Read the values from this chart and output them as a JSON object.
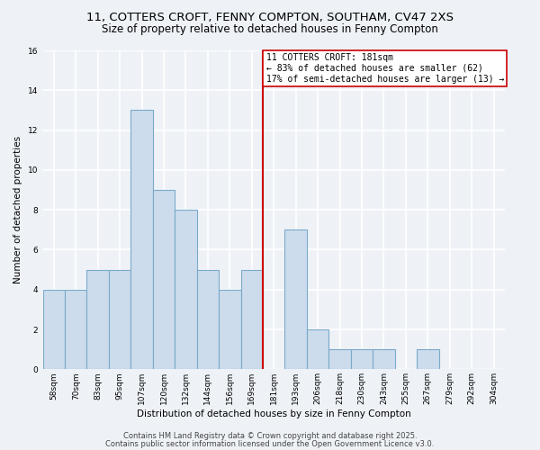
{
  "title_line1": "11, COTTERS CROFT, FENNY COMPTON, SOUTHAM, CV47 2XS",
  "title_line2": "Size of property relative to detached houses in Fenny Compton",
  "xlabel": "Distribution of detached houses by size in Fenny Compton",
  "ylabel": "Number of detached properties",
  "bar_labels": [
    "58sqm",
    "70sqm",
    "83sqm",
    "95sqm",
    "107sqm",
    "120sqm",
    "132sqm",
    "144sqm",
    "156sqm",
    "169sqm",
    "181sqm",
    "193sqm",
    "206sqm",
    "218sqm",
    "230sqm",
    "243sqm",
    "255sqm",
    "267sqm",
    "279sqm",
    "292sqm",
    "304sqm"
  ],
  "bar_values": [
    4,
    4,
    5,
    5,
    13,
    9,
    8,
    5,
    4,
    5,
    0,
    7,
    2,
    1,
    1,
    1,
    0,
    1,
    0,
    0,
    0
  ],
  "bar_color": "#ccdcec",
  "bar_edgecolor": "#7aaaca",
  "vline_index": 10,
  "vline_color": "#cc0000",
  "annotation_line1": "11 COTTERS CROFT: 181sqm",
  "annotation_line2": "← 83% of detached houses are smaller (62)",
  "annotation_line3": "17% of semi-detached houses are larger (13) →",
  "annotation_box_edgecolor": "#cc0000",
  "annotation_box_facecolor": "#ffffff",
  "ylim": [
    0,
    16
  ],
  "yticks": [
    0,
    2,
    4,
    6,
    8,
    10,
    12,
    14,
    16
  ],
  "footer_line1": "Contains HM Land Registry data © Crown copyright and database right 2025.",
  "footer_line2": "Contains public sector information licensed under the Open Government Licence v3.0.",
  "background_color": "#eef2f7",
  "plot_background_color": "#eef2f7",
  "grid_color": "#ffffff",
  "title_fontsize": 9.5,
  "subtitle_fontsize": 8.5,
  "axis_label_fontsize": 7.5,
  "tick_fontsize": 6.5,
  "annotation_fontsize": 7,
  "footer_fontsize": 6
}
